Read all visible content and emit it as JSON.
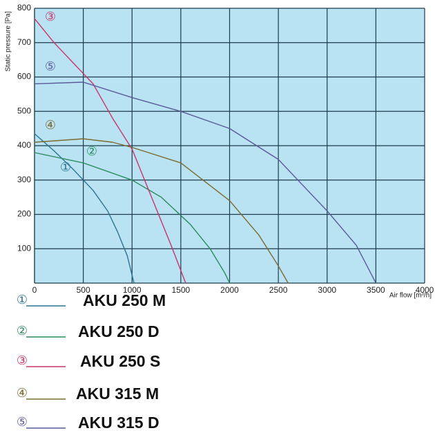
{
  "chart_data": {
    "type": "line",
    "y_label": "Static pressure [Pa]",
    "x_label": "Air flow [m³/h]",
    "xlim": [
      0,
      4000
    ],
    "xticks": [
      0,
      500,
      1000,
      1500,
      2000,
      2500,
      3000,
      3500,
      4000
    ],
    "ylim": [
      0,
      800
    ],
    "yticks": [
      100,
      200,
      300,
      400,
      500,
      600,
      700,
      800
    ],
    "grid": true,
    "series": [
      {
        "name": "AKU 250 M",
        "marker": "①",
        "color": "#2b7390",
        "x": [
          0,
          200,
          400,
          600,
          750,
          850,
          950,
          1020
        ],
        "values": [
          435,
          385,
          330,
          270,
          210,
          150,
          80,
          0
        ]
      },
      {
        "name": "AKU 250 D",
        "marker": "②",
        "color": "#2a8a5c",
        "x": [
          0,
          500,
          1000,
          1300,
          1600,
          1800,
          1950,
          2000
        ],
        "values": [
          380,
          350,
          300,
          250,
          170,
          100,
          30,
          0
        ]
      },
      {
        "name": "AKU 250 S",
        "marker": "③",
        "color": "#c8336a",
        "x": [
          0,
          200,
          400,
          600,
          800,
          1000,
          1200,
          1400,
          1550
        ],
        "values": [
          770,
          700,
          640,
          580,
          480,
          390,
          250,
          110,
          0
        ]
      },
      {
        "name": "AKU 315 M",
        "marker": "④",
        "color": "#7a6a30",
        "x": [
          0,
          500,
          800,
          1000,
          1500,
          2000,
          2300,
          2500,
          2600
        ],
        "values": [
          410,
          420,
          410,
          395,
          350,
          240,
          140,
          50,
          0
        ]
      },
      {
        "name": "AKU 315 D",
        "marker": "⑤",
        "color": "#5a5a9a",
        "x": [
          0,
          500,
          1000,
          1500,
          2000,
          2500,
          3000,
          3300,
          3500
        ],
        "values": [
          580,
          585,
          540,
          500,
          450,
          360,
          210,
          110,
          0
        ]
      }
    ]
  }
}
